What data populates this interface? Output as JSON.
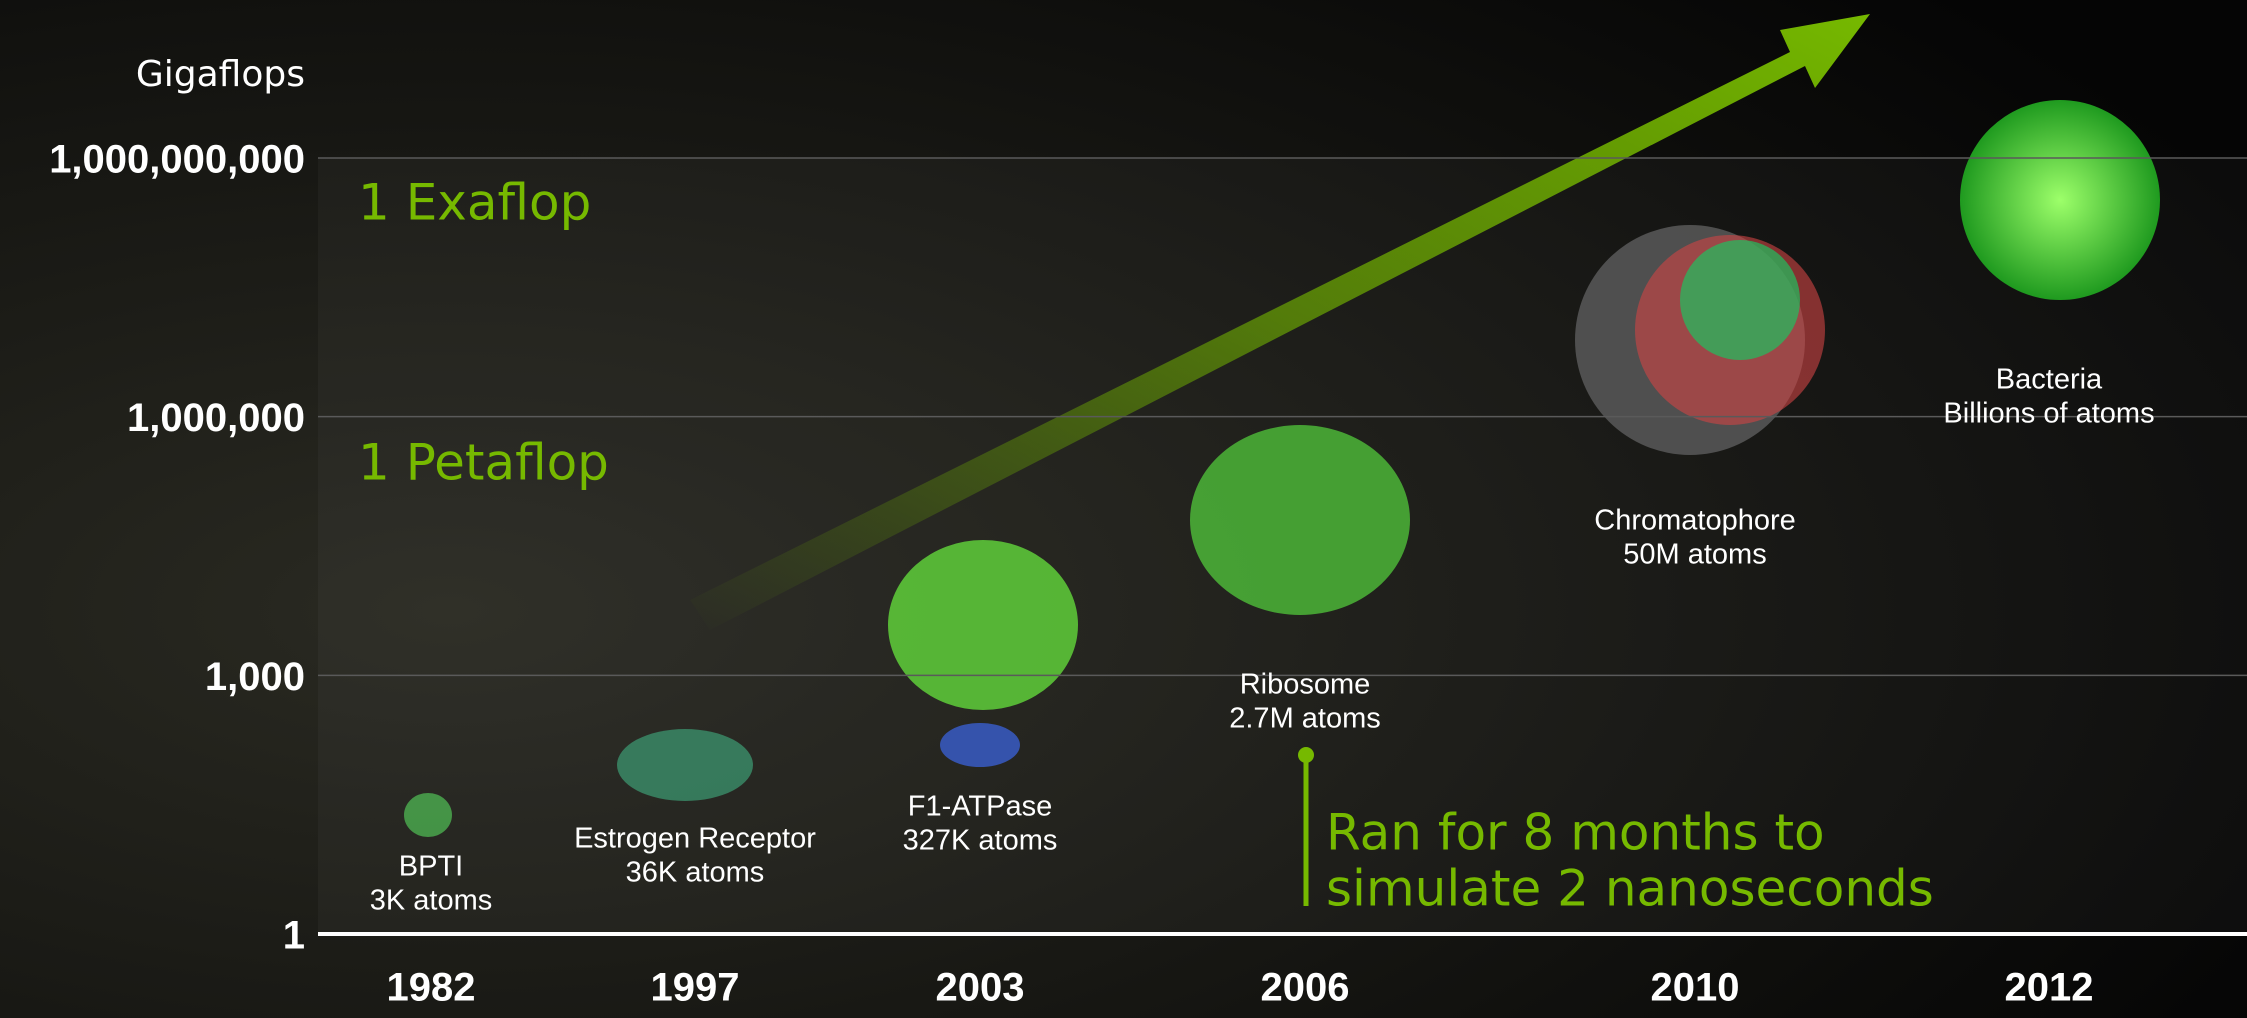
{
  "chart_data": {
    "type": "timeline",
    "y_label": "Gigaflops",
    "yscale": "log",
    "ylim": [
      1,
      1000000000
    ],
    "yticks": [
      1,
      {
        "value": 1000,
        "label": "1,000"
      },
      {
        "value": 1000000,
        "label": "1,000,000"
      },
      {
        "value": 1000000000,
        "label": "1,000,000,000"
      }
    ],
    "grid": true,
    "categories": [
      "1982",
      "1997",
      "2003",
      "2006",
      "2010",
      "2012"
    ],
    "items": [
      {
        "name": "BPTI",
        "size": "3K atoms"
      },
      {
        "name": "Estrogen Receptor",
        "size": "36K atoms"
      },
      {
        "name": "F1-ATPase",
        "size": "327K atoms"
      },
      {
        "name": "Ribosome",
        "size": "2.7M atoms"
      },
      {
        "name": "Chromatophore",
        "size": "50M atoms"
      },
      {
        "name": "Bacteria",
        "size": "Billions of atoms"
      }
    ],
    "annotations": [
      "1 Exaflop",
      "1 Petaflop",
      "Ran for 8 months to",
      "simulate 2 nanoseconds"
    ]
  }
}
